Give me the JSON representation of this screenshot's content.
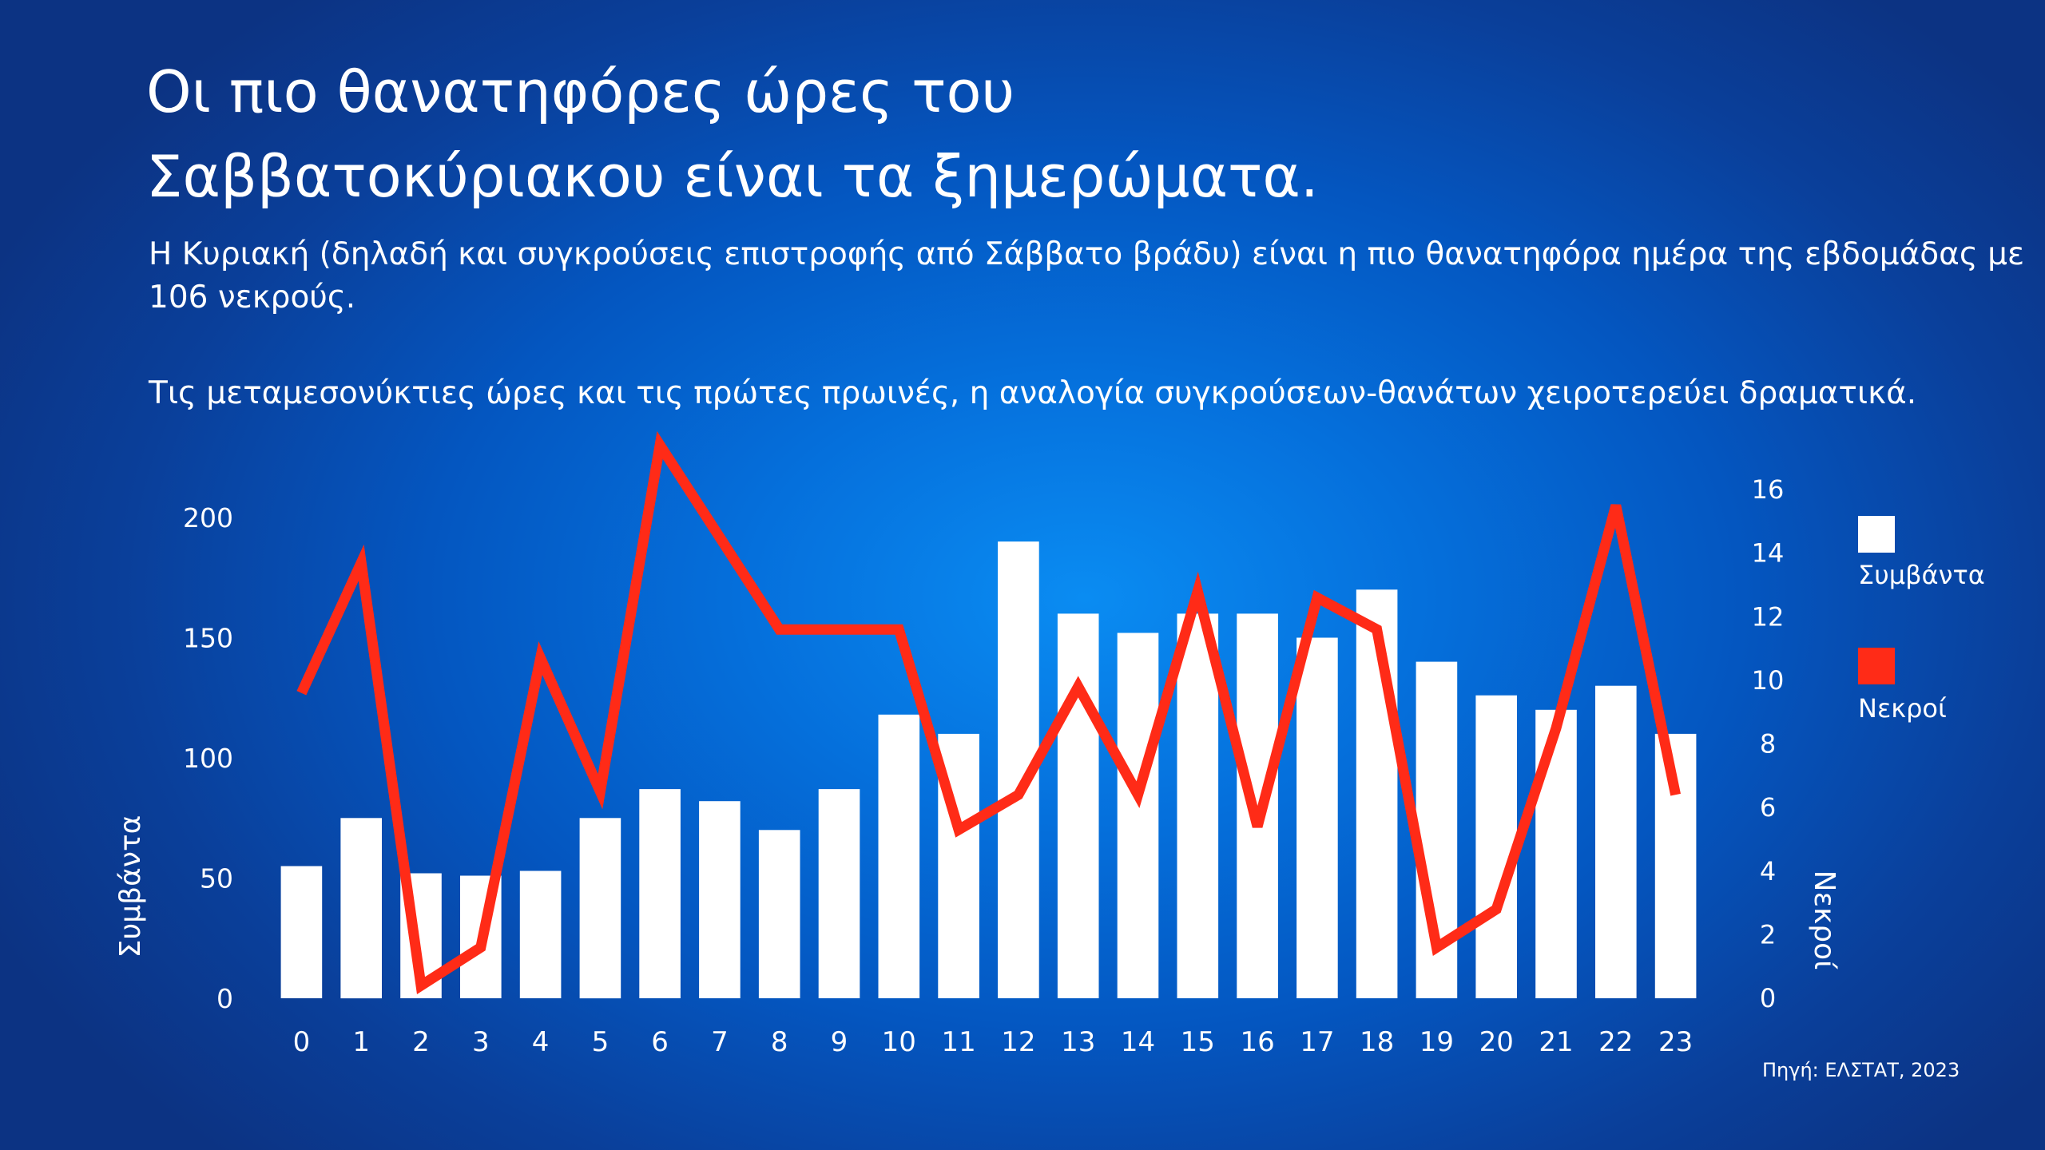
{
  "chart_data": {
    "type": "bar+line",
    "title": "Οι πιο θανατηφόρες ώρες του Σαββατοκύριακου είναι τα ξημερώματα.",
    "title_lines": [
      "Οι πιο θανατηφόρες ώρες του",
      "Σαββατοκύριακου είναι τα ξημερώματα."
    ],
    "subtitle": [
      "Η Κυριακή (δηλαδή και συγκρούσεις επιστροφής από Σάββατο βράδυ) είναι η πιο θανατηφόρα ημέρα της εβδομάδας με 106 νεκρούς.",
      "Τις μεταμεσονύκτιες ώρες και τις πρώτες πρωινές, η αναλογία συγκρούσεων-θανάτων χειροτερεύει δραματικά."
    ],
    "categories": [
      "0",
      "1",
      "2",
      "3",
      "4",
      "5",
      "6",
      "7",
      "8",
      "9",
      "10",
      "11",
      "12",
      "13",
      "14",
      "15",
      "16",
      "17",
      "18",
      "19",
      "20",
      "21",
      "22",
      "23"
    ],
    "series": [
      {
        "name": "Συμβάντα",
        "kind": "bar",
        "axis": "left",
        "color": "#ffffff",
        "values": [
          55,
          75,
          52,
          51,
          53,
          75,
          87,
          82,
          70,
          87,
          118,
          110,
          190,
          160,
          152,
          160,
          160,
          150,
          170,
          140,
          126,
          120,
          130,
          110
        ]
      },
      {
        "name": "Νεκροί",
        "kind": "line",
        "axis": "right",
        "color": "#ff2b17",
        "values": [
          9.6,
          13.7,
          0.4,
          1.6,
          10.7,
          6.5,
          17.4,
          14.5,
          11.6,
          11.6,
          11.6,
          5.3,
          6.4,
          9.8,
          6.4,
          12.8,
          5.4,
          12.6,
          11.6,
          1.6,
          2.8,
          8.5,
          15.5,
          6.4
        ]
      }
    ],
    "ylabel": "Συμβάντα",
    "y2label": "Νεκροί",
    "yticks": [
      0,
      50,
      100,
      150,
      200
    ],
    "ylim": [
      0,
      200
    ],
    "y2ticks": [
      0,
      2,
      4,
      6,
      8,
      10,
      12,
      14,
      16
    ],
    "y2lim": [
      0,
      16
    ],
    "legend_position": "right",
    "grid": false,
    "source": "Πηγή: ΕΛΣΤΑΤ, 2023"
  }
}
